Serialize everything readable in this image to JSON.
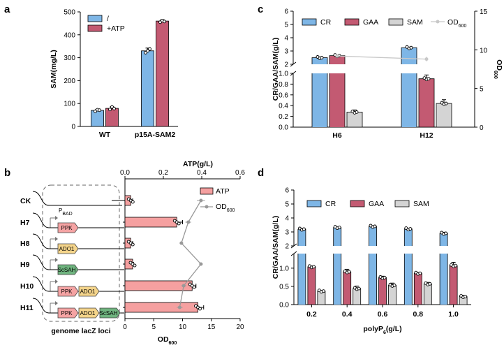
{
  "panels": {
    "a": {
      "label": "a",
      "chart_data": {
        "type": "bar",
        "categories": [
          "WT",
          "p15A-SAM2"
        ],
        "series": [
          {
            "name": "/",
            "color": "#7EB6E6",
            "values": [
              70,
              330
            ],
            "errors": [
              5,
              12
            ],
            "points": [
              [
                66,
                73,
                71
              ],
              [
                322,
                330,
                338
              ]
            ]
          },
          {
            "name": "+ATP",
            "color": "#C35A72",
            "values": [
              79,
              460
            ],
            "errors": [
              7,
              6
            ],
            "points": [
              [
                74,
                85,
                78
              ],
              [
                455,
                462,
                458
              ]
            ]
          }
        ],
        "ylabel": "SAM(mg/L)",
        "ylim": [
          0,
          500
        ],
        "yticks": [
          "0",
          "100",
          "200",
          "300",
          "400",
          "500"
        ]
      }
    },
    "b": {
      "label": "b",
      "strains": [
        "CK",
        "H7",
        "H8",
        "H9",
        "H10",
        "H11"
      ],
      "genes": {
        "ppk": "PPK",
        "ado1": "ADO1",
        "sosah": "ScSAH"
      },
      "promoter": {
        "main": "P",
        "sub": "BAD"
      },
      "locus_label": "genome lacZ loci",
      "chart_data": {
        "type": "bar",
        "orientation": "horizontal",
        "categories": [
          "CK",
          "H7",
          "H8",
          "H9",
          "H10",
          "H11"
        ],
        "series": [
          {
            "name": "ATP",
            "axis": "top",
            "color": "#F5A0A0",
            "values": [
              0.03,
              0.27,
              0.03,
              0.04,
              0.35,
              0.38
            ],
            "errors": [
              0.01,
              0.03,
              0.01,
              0.005,
              0.02,
              0.03
            ]
          },
          {
            "name_main": "OD",
            "name_sub": "600",
            "axis": "bottom",
            "type": "line",
            "color": "#999999",
            "values": [
              13.2,
              11.0,
              9.8,
              13.2,
              10.2,
              9.5
            ],
            "errors": [
              0.7,
              0.5,
              0.3,
              0.3,
              0.4,
              0.5
            ]
          }
        ],
        "top_axis_label": "ATP(g/L)",
        "top_ticks": [
          "0.0",
          "0.2",
          "0.4",
          "0.6"
        ],
        "top_lim": [
          0,
          0.6
        ],
        "bottom_axis_label_main": "OD",
        "bottom_axis_label_sub": "600",
        "bottom_ticks": [
          "0",
          "5",
          "10",
          "15",
          "20"
        ],
        "bottom_lim": [
          0,
          20
        ]
      }
    },
    "c": {
      "label": "c",
      "chart_data": {
        "type": "bar",
        "categories": [
          "H6",
          "H12"
        ],
        "series": [
          {
            "name": "CR",
            "color": "#7EB6E6",
            "values": [
              2.5,
              3.25
            ],
            "errors": [
              0.05,
              0.04
            ]
          },
          {
            "name": "GAA",
            "color": "#C35A72",
            "values": [
              2.65,
              0.9
            ],
            "errors": [
              0.04,
              0.07
            ]
          },
          {
            "name": "SAM",
            "color": "#D4D4D4",
            "values": [
              0.28,
              0.44
            ],
            "errors": [
              0.04,
              0.07
            ]
          }
        ],
        "line_series": {
          "name_main": "OD",
          "name_sub": "600",
          "color": "#C8C8C8",
          "values": [
            9.2,
            8.8
          ],
          "errors": [
            0.2,
            0.3
          ]
        },
        "ylabel": "CR/GAA/SAM(g/L)",
        "y2label_main": "OD",
        "y2label_sub": "600",
        "broken_axis": true,
        "ylim_lower": [
          0,
          1.0
        ],
        "ylim_upper": [
          2,
          6
        ],
        "y_ticks_lower": [
          "0.0",
          "0.2",
          "0.4",
          "0.6",
          "0.8",
          "1.0"
        ],
        "y_ticks_upper": [
          "2",
          "3",
          "4",
          "5",
          "6"
        ],
        "y2lim": [
          0,
          15
        ],
        "y2_ticks": [
          "0",
          "5",
          "10",
          "15"
        ]
      }
    },
    "d": {
      "label": "d",
      "chart_data": {
        "type": "bar",
        "categories": [
          "0.2",
          "0.4",
          "0.6",
          "0.8",
          "1.0"
        ],
        "series": [
          {
            "name": "CR",
            "color": "#7EB6E6",
            "values": [
              3.2,
              3.32,
              3.4,
              3.22,
              2.9
            ],
            "errors": [
              0.04,
              0.03,
              0.05,
              0.03,
              0.08
            ]
          },
          {
            "name": "GAA",
            "color": "#C35A72",
            "values": [
              1.04,
              0.9,
              0.74,
              0.86,
              1.07
            ],
            "errors": [
              0.02,
              0.07,
              0.04,
              0.02,
              0.09
            ]
          },
          {
            "name": "SAM",
            "color": "#D4D4D4",
            "values": [
              0.37,
              0.44,
              0.53,
              0.57,
              0.22
            ],
            "errors": [
              0.02,
              0.07,
              0.06,
              0.04,
              0.03
            ]
          }
        ],
        "ylabel": "CR/GAA/SAM(g/L)",
        "xlabel_main": "polyP",
        "xlabel_sub": "6",
        "xlabel_tail": "(g/L)",
        "broken_axis": true,
        "ylim_lower": [
          0,
          1.4
        ],
        "ylim_upper": [
          2,
          6
        ],
        "y_ticks_lower": [
          "0.0",
          "0.5",
          "1.0"
        ],
        "y_ticks_upper": [
          "2",
          "3",
          "4",
          "5",
          "6"
        ]
      }
    }
  }
}
